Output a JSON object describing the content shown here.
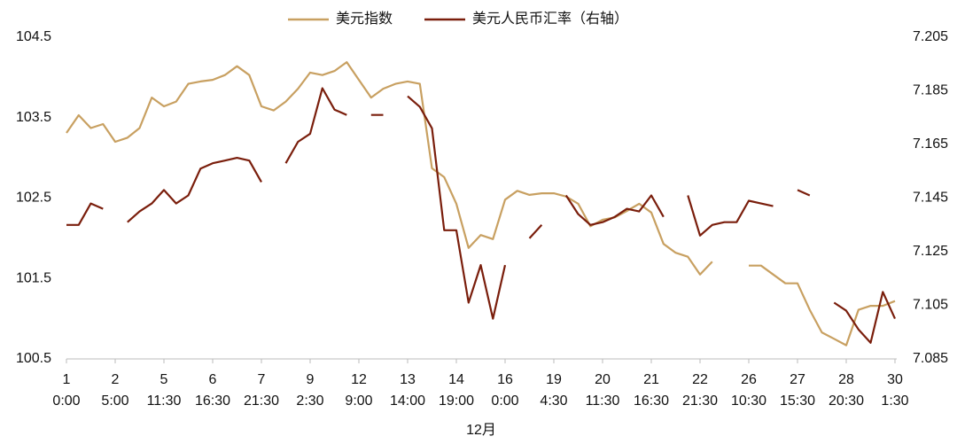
{
  "chart_data": {
    "type": "line",
    "x_label": "12月",
    "x": [
      0,
      0.25,
      0.5,
      0.75,
      1,
      1.25,
      1.5,
      1.75,
      2,
      2.25,
      2.5,
      2.75,
      3,
      3.25,
      3.5,
      3.75,
      4,
      4.25,
      4.5,
      4.75,
      5,
      5.25,
      5.5,
      5.75,
      6,
      6.25,
      6.5,
      6.75,
      7,
      7.25,
      7.5,
      7.75,
      8,
      8.25,
      8.5,
      8.75,
      9,
      9.25,
      9.5,
      9.75,
      10,
      10.25,
      10.5,
      10.75,
      11,
      11.25,
      11.5,
      11.75,
      12,
      12.25,
      12.5,
      12.75,
      13,
      13.25,
      13.5,
      13.75,
      14,
      14.25,
      14.5,
      14.75,
      15,
      15.25,
      15.5,
      15.75,
      16,
      16.25,
      16.5,
      16.75,
      17
    ],
    "xlim": [
      0,
      17
    ],
    "xticks": [
      0,
      1,
      2,
      3,
      4,
      5,
      6,
      7,
      8,
      9,
      10,
      11,
      12,
      13,
      14,
      15,
      16,
      17
    ],
    "xtick_labels": [
      [
        "1",
        "0:00"
      ],
      [
        "2",
        "5:00"
      ],
      [
        "5",
        "11:30"
      ],
      [
        "6",
        "16:30"
      ],
      [
        "7",
        "21:30"
      ],
      [
        "9",
        "2:30"
      ],
      [
        "12",
        "9:00"
      ],
      [
        "13",
        "14:00"
      ],
      [
        "14",
        "19:00"
      ],
      [
        "16",
        "0:00"
      ],
      [
        "19",
        "4:30"
      ],
      [
        "20",
        "11:30"
      ],
      [
        "21",
        "16:30"
      ],
      [
        "22",
        "21:30"
      ],
      [
        "26",
        "10:30"
      ],
      [
        "27",
        "15:30"
      ],
      [
        "28",
        "20:30"
      ],
      [
        "30",
        "1:30"
      ]
    ],
    "ylim": [
      100.5,
      104.5
    ],
    "yticks": [
      100.5,
      101.5,
      102.5,
      103.5,
      104.5
    ],
    "y2lim": [
      7.085,
      7.205
    ],
    "y2ticks": [
      7.085,
      7.105,
      7.125,
      7.145,
      7.165,
      7.185,
      7.205
    ],
    "legend": "top",
    "series": [
      {
        "name": "美元指数",
        "color": "#c8a061",
        "axis": "y",
        "values": [
          103.31,
          103.53,
          103.37,
          103.42,
          103.2,
          103.25,
          103.37,
          103.75,
          103.64,
          103.7,
          103.92,
          103.95,
          103.97,
          104.03,
          104.14,
          104.03,
          103.64,
          103.59,
          103.7,
          103.86,
          104.06,
          104.03,
          104.08,
          104.19,
          103.97,
          103.75,
          103.86,
          103.92,
          103.95,
          103.92,
          102.87,
          102.76,
          102.43,
          101.88,
          102.04,
          101.99,
          102.48,
          102.59,
          102.54,
          102.56,
          102.56,
          102.52,
          102.43,
          102.15,
          102.23,
          102.26,
          102.34,
          102.43,
          102.32,
          101.93,
          101.82,
          101.77,
          101.55,
          101.71,
          null,
          null,
          101.66,
          101.66,
          101.55,
          101.44,
          101.44,
          101.11,
          100.83,
          100.75,
          100.67,
          101.11,
          101.16,
          101.16,
          101.22
        ]
      },
      {
        "name": "美元人民币汇率（右轴）",
        "color": "#7a1e0c",
        "axis": "y2",
        "values": [
          7.135,
          7.135,
          7.143,
          7.141,
          null,
          7.136,
          7.14,
          7.143,
          7.148,
          7.143,
          7.146,
          7.156,
          7.158,
          7.159,
          7.16,
          7.159,
          7.151,
          null,
          7.158,
          7.166,
          7.169,
          7.186,
          7.178,
          7.176,
          null,
          7.176,
          7.176,
          null,
          7.183,
          7.179,
          7.171,
          7.133,
          7.133,
          7.106,
          7.12,
          7.1,
          7.12,
          null,
          7.13,
          7.135,
          null,
          7.146,
          7.139,
          7.135,
          7.136,
          7.138,
          7.141,
          7.14,
          7.146,
          7.138,
          null,
          7.146,
          7.131,
          7.135,
          7.136,
          7.136,
          7.144,
          7.143,
          7.142,
          null,
          7.148,
          7.146,
          null,
          7.106,
          7.103,
          7.096,
          7.091,
          7.11,
          7.1
        ]
      }
    ]
  }
}
